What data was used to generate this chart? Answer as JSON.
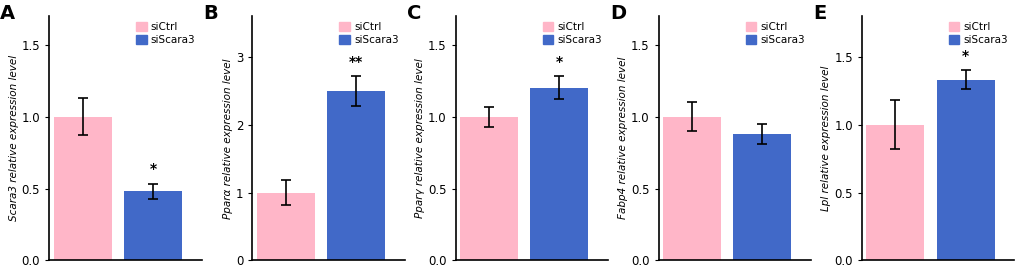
{
  "panels": [
    {
      "label": "A",
      "ylabel": "Scara3 relative expression level",
      "ctrl_val": 1.0,
      "ctrl_err": 0.13,
      "si_val": 0.48,
      "si_err": 0.055,
      "ylim": [
        0,
        1.7
      ],
      "yticks": [
        0.0,
        0.5,
        1.0,
        1.5
      ],
      "sig": "*",
      "sig_on": "si"
    },
    {
      "label": "B",
      "ylabel": "Pparα relative expression level",
      "ctrl_val": 1.0,
      "ctrl_err": 0.18,
      "si_val": 2.5,
      "si_err": 0.22,
      "ylim": [
        0,
        3.6
      ],
      "yticks": [
        0,
        1,
        2,
        3
      ],
      "sig": "**",
      "sig_on": "si"
    },
    {
      "label": "C",
      "ylabel": "Pparγ relative expression level",
      "ctrl_val": 1.0,
      "ctrl_err": 0.07,
      "si_val": 1.2,
      "si_err": 0.08,
      "ylim": [
        0,
        1.7
      ],
      "yticks": [
        0.0,
        0.5,
        1.0,
        1.5
      ],
      "sig": "*",
      "sig_on": "si"
    },
    {
      "label": "D",
      "ylabel": "Fabp4 relative expression level",
      "ctrl_val": 1.0,
      "ctrl_err": 0.1,
      "si_val": 0.88,
      "si_err": 0.07,
      "ylim": [
        0,
        1.7
      ],
      "yticks": [
        0.0,
        0.5,
        1.0,
        1.5
      ],
      "sig": null,
      "sig_on": null
    },
    {
      "label": "E",
      "ylabel": "Lpl relative expression level",
      "ctrl_val": 1.0,
      "ctrl_err": 0.18,
      "si_val": 1.33,
      "si_err": 0.07,
      "ylim": [
        0,
        1.8
      ],
      "yticks": [
        0.0,
        0.5,
        1.0,
        1.5
      ],
      "sig": "*",
      "sig_on": "si"
    }
  ],
  "ctrl_color": "#FFB6C8",
  "si_color": "#4169C8",
  "legend_labels": [
    "siCtrl",
    "siScara3"
  ],
  "background_color": "#ffffff",
  "bar_width": 0.38,
  "label_fontsize": 14,
  "tick_fontsize": 8.5,
  "ylabel_fontsize": 7.5,
  "sig_fontsize": 10,
  "legend_fontsize": 7.5
}
